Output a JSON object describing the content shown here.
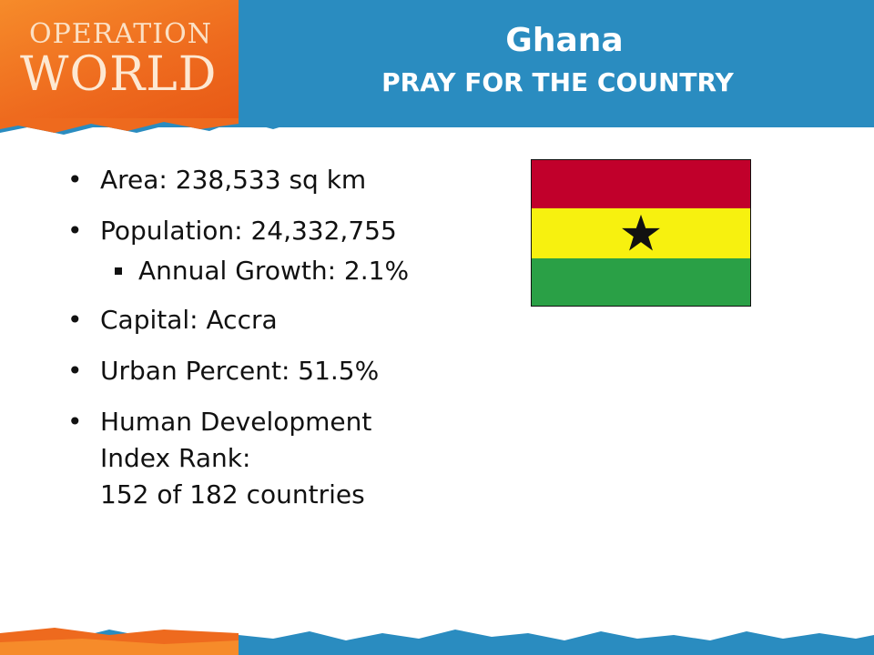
{
  "logo": {
    "line1": "OPERATION",
    "line2": "WORLD"
  },
  "header": {
    "title": "Ghana",
    "subtitle": "PRAY FOR THE COUNTRY"
  },
  "facts": {
    "area": "Area: 238,533 sq km",
    "population": "Population: 24,332,755",
    "annual_growth": "Annual Growth: 2.1%",
    "capital": "Capital: Accra",
    "urban": "Urban Percent: 51.5%",
    "hdi_line1": "Human Development",
    "hdi_line2": "Index Rank:",
    "hdi_line3": "152 of 182 countries"
  },
  "colors": {
    "header_blue": "#2a8cc0",
    "logo_orange": "#ee6a1e",
    "flag_red": "#c1002b",
    "flag_yellow": "#f7f10f",
    "flag_green": "#2aa046",
    "flag_star": "#111111"
  },
  "icons": {
    "flag": "ghana-flag-icon",
    "star": "black-star-icon"
  }
}
